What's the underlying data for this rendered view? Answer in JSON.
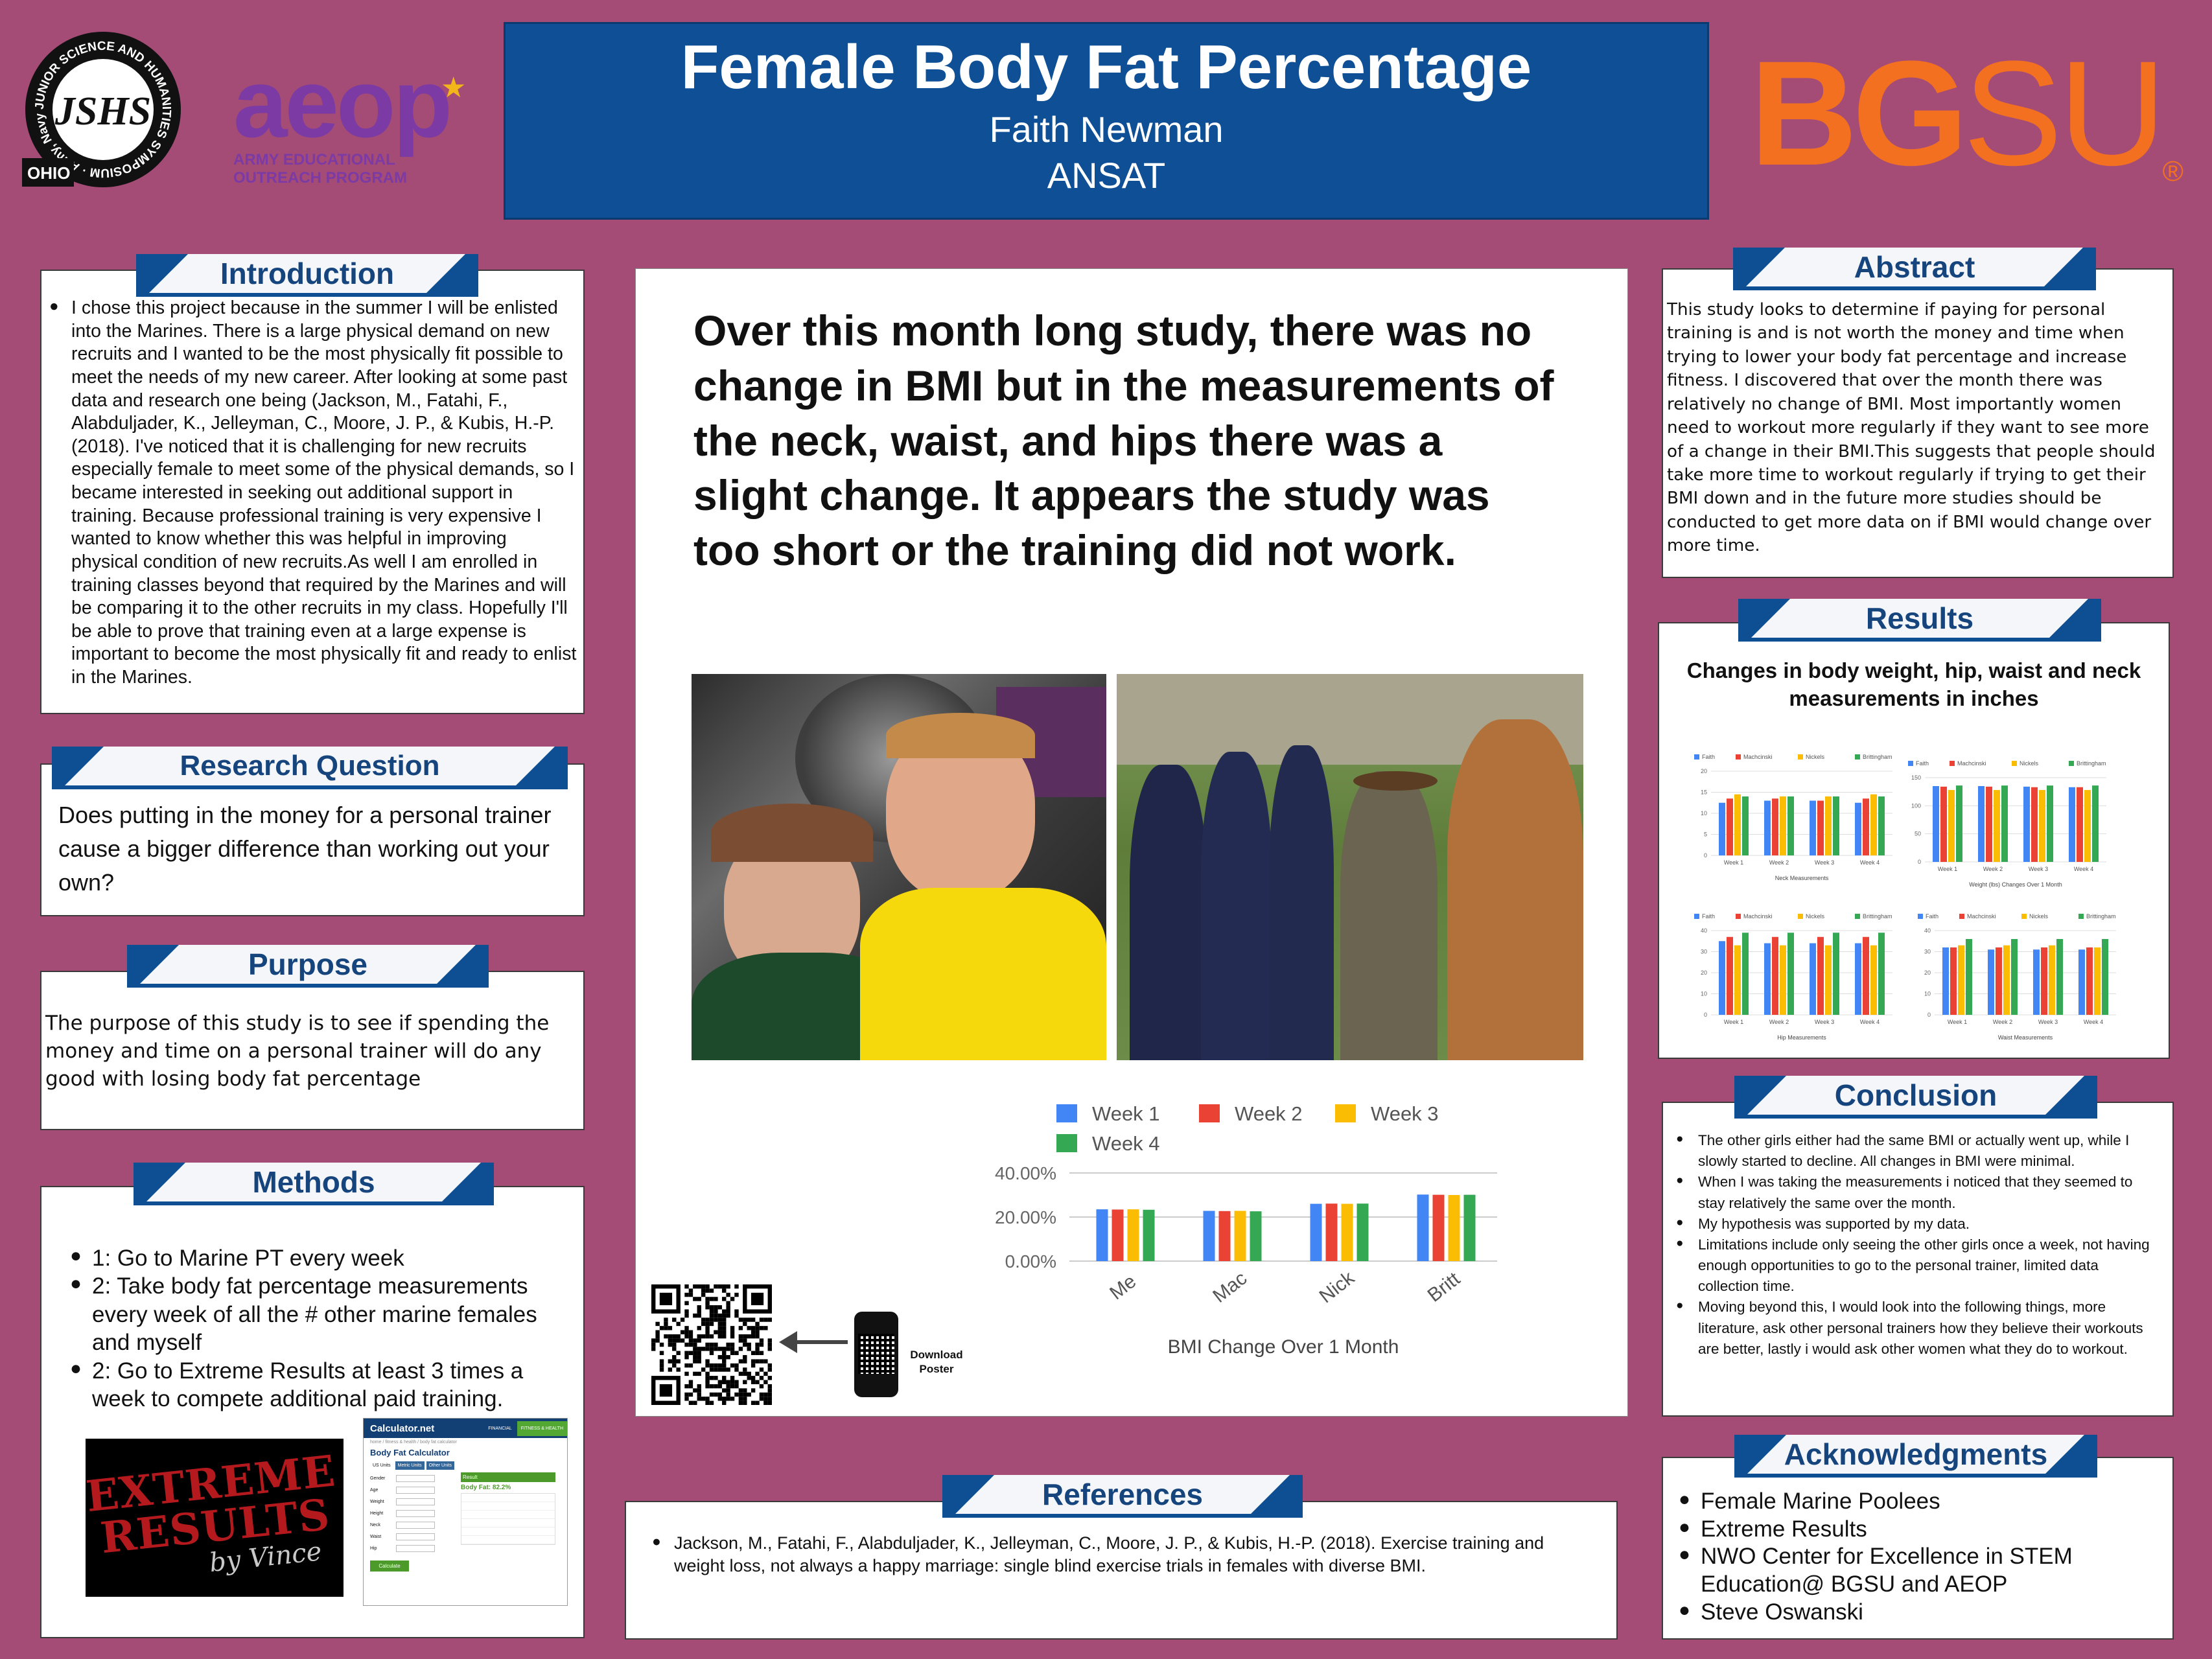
{
  "header": {
    "title": "Female Body Fat Percentage",
    "author": "Faith Newman",
    "affiliation": "ANSAT"
  },
  "logos": {
    "jshs_ring": "JUNIOR SCIENCE AND HUMANITIES SYMPOSIUM · Army, Navy and Air Force Sponsored ·",
    "jshs_center": "JSHS",
    "jshs_state": "OHIO",
    "aeop_mark": "aeop",
    "aeop_line1": "ARMY EDUCATIONAL",
    "aeop_line2": "OUTREACH PROGRAM",
    "bgsu_bg": "BG",
    "bgsu_su": "SU",
    "bgsu_reg": "®"
  },
  "introduction": {
    "heading": "Introduction",
    "text": "I chose this project  because in the summer I will be enlisted into the Marines. There is a large physical demand on new recruits and I wanted to be the most physically fit possible to meet the needs of my new career. After looking at some past data and research one being (Jackson, M., Fatahi, F., Alabduljader, K., Jelleyman, C., Moore, J. P., & Kubis, H.-P. (2018). I've noticed that it is challenging for new recruits especially female to meet some of the physical demands, so I became interested in seeking out additional support in training. Because professional training is very expensive I wanted to know whether this was helpful in improving physical condition of new recruits.As well I am enrolled in training classes beyond that required by the Marines and will be comparing it to the other recruits in my class. Hopefully I'll be able to prove that training even at a large expense is important to become the most physically fit and ready to enlist in the Marines."
  },
  "research_question": {
    "heading": "Research Question",
    "text": "Does putting in the money for a personal trainer cause a bigger difference than working out your own?"
  },
  "purpose": {
    "heading": "Purpose",
    "text": "The purpose of this study is to see if spending the money and time on a personal trainer will do any good with losing body fat percentage"
  },
  "methods": {
    "heading": "Methods",
    "items": [
      "1: Go to Marine PT every week",
      "2: Take body fat percentage measurements every week of all the # other marine females and myself",
      "2: Go to Extreme Results at least 3 times a week to compete additional paid training."
    ],
    "extreme_logo_line1": "EXTREME",
    "extreme_logo_line2": "RESULTS",
    "extreme_logo_line3": "by Vince",
    "calc": {
      "brand": "Calculator.net",
      "nav1": "FINANCIAL",
      "nav2": "FITNESS & HEALTH",
      "breadcrumb": "home / fitness & health / body fat calculator",
      "title": "Body Fat Calculator",
      "tab1": "US Units",
      "tab2": "Metric Units",
      "tab3": "Other Units",
      "fields": [
        "Gender",
        "Age",
        "Weight",
        "Height",
        "Neck",
        "Waist",
        "Hip"
      ],
      "result_label": "Result",
      "result_value": "Body Fat: 82.2%",
      "button": "Calculate"
    }
  },
  "key_finding": "Over this month long study, there was no change in BMI but in the measurements of the neck, waist, and hips there was a slight change. It appears the study was too short or the training did not work.",
  "qr": {
    "label_line1": "Download",
    "label_line2": "Poster"
  },
  "chart_data": [
    {
      "type": "bar",
      "title": "",
      "xlabel": "BMI Change Over 1 Month",
      "ylabel": "",
      "categories": [
        "Me",
        "Mac",
        "Nick",
        "Britt"
      ],
      "series": [
        {
          "name": "Week 1",
          "values": [
            23.5,
            22.8,
            26.0,
            30.2
          ],
          "color": "#4285f4"
        },
        {
          "name": "Week 2",
          "values": [
            23.4,
            22.7,
            26.1,
            30.1
          ],
          "color": "#ea4335"
        },
        {
          "name": "Week 3",
          "values": [
            23.5,
            22.8,
            26.0,
            30.0
          ],
          "color": "#fbbc04"
        },
        {
          "name": "Week 4",
          "values": [
            23.3,
            22.6,
            26.1,
            30.1
          ],
          "color": "#34a853"
        }
      ],
      "ylim": [
        0,
        40
      ],
      "yticks": [
        "0.00%",
        "20.00%",
        "40.00%"
      ],
      "grid": true,
      "legend": "top"
    },
    {
      "type": "bar",
      "title": "Neck Measurements",
      "categories": [
        "Week 1",
        "Week 2",
        "Week 3",
        "Week 4"
      ],
      "series": [
        {
          "name": "Faith",
          "values": [
            12.5,
            13,
            13,
            12.5
          ],
          "color": "#4285f4"
        },
        {
          "name": "Machcinski",
          "values": [
            13.5,
            13.5,
            13,
            13.5
          ],
          "color": "#ea4335"
        },
        {
          "name": "Nickels",
          "values": [
            14.5,
            14,
            14,
            14.5
          ],
          "color": "#fbbc04"
        },
        {
          "name": "Brittingham",
          "values": [
            14,
            14,
            14,
            14
          ],
          "color": "#34a853"
        }
      ],
      "ylim": [
        0,
        20
      ],
      "yticks": [
        "0",
        "5",
        "10",
        "15",
        "20"
      ],
      "legend": "top"
    },
    {
      "type": "bar",
      "title": "Weight (lbs) Changes Over 1 Month",
      "categories": [
        "Week 1",
        "Week 2",
        "Week 3",
        "Week 4"
      ],
      "series": [
        {
          "name": "Faith",
          "values": [
            135,
            135,
            134,
            133
          ],
          "color": "#4285f4"
        },
        {
          "name": "Machcinski",
          "values": [
            134,
            134,
            133,
            133
          ],
          "color": "#ea4335"
        },
        {
          "name": "Nickels",
          "values": [
            128,
            128,
            128,
            128
          ],
          "color": "#fbbc04"
        },
        {
          "name": "Brittingham",
          "values": [
            136,
            136,
            136,
            136
          ],
          "color": "#34a853"
        }
      ],
      "ylim": [
        0,
        150
      ],
      "yticks": [
        "0",
        "50",
        "100",
        "150"
      ],
      "legend": "top"
    },
    {
      "type": "bar",
      "title": "Hip Measurements",
      "categories": [
        "Week 1",
        "Week 2",
        "Week 3",
        "Week 4"
      ],
      "series": [
        {
          "name": "Faith",
          "values": [
            35,
            34,
            34,
            34
          ],
          "color": "#4285f4"
        },
        {
          "name": "Machcinski",
          "values": [
            37,
            37,
            37,
            37
          ],
          "color": "#ea4335"
        },
        {
          "name": "Nickels",
          "values": [
            33,
            33,
            33,
            33
          ],
          "color": "#fbbc04"
        },
        {
          "name": "Brittingham",
          "values": [
            39,
            39,
            39,
            39
          ],
          "color": "#34a853"
        }
      ],
      "ylim": [
        0,
        40
      ],
      "yticks": [
        "0",
        "10",
        "20",
        "30",
        "40"
      ],
      "legend": "top"
    },
    {
      "type": "bar",
      "title": "Waist Measurements",
      "categories": [
        "Week 1",
        "Week 2",
        "Week 3",
        "Week 4"
      ],
      "series": [
        {
          "name": "Faith",
          "values": [
            32,
            31,
            31,
            31
          ],
          "color": "#4285f4"
        },
        {
          "name": "Machcinski",
          "values": [
            32,
            32,
            32,
            32
          ],
          "color": "#ea4335"
        },
        {
          "name": "Nickels",
          "values": [
            33,
            33,
            33,
            32
          ],
          "color": "#fbbc04"
        },
        {
          "name": "Brittingham",
          "values": [
            36,
            36,
            36,
            36
          ],
          "color": "#34a853"
        }
      ],
      "ylim": [
        0,
        40
      ],
      "yticks": [
        "0",
        "10",
        "20",
        "30",
        "40"
      ],
      "legend": "top"
    }
  ],
  "abstract": {
    "heading": "Abstract",
    "text": "This study looks to determine if paying for personal training is and is not  worth the money and time when trying to lower your body fat percentage and increase fitness. I discovered that over the month there was relatively no change of BMI. Most importantly women need to workout more regularly if they want to see more of a change in their BMI.This suggests that people should take more time to workout regularly if trying to get their BMI down and in the future more studies should be conducted to get more data on if BMI would change over more time."
  },
  "results": {
    "heading": "Results",
    "subtitle": "Changes in body weight, hip, waist and neck measurements in inches"
  },
  "conclusion": {
    "heading": "Conclusion",
    "items": [
      "The other girls either had the same BMI or actually went up, while I slowly started to decline.  All changes in BMI were minimal.",
      "When I was taking the measurements i noticed that they seemed to stay relatively the same over the month.",
      "My hypothesis was supported by my data.",
      "Limitations include only seeing the other girls once a week, not having enough opportunities to go to the personal trainer, limited data collection time.",
      "Moving beyond this, I would look into the following things, more literature, ask other personal trainers how they believe their workouts are better, lastly i would ask other women what they do to workout."
    ]
  },
  "references": {
    "heading": "References",
    "items": [
      "Jackson, M., Fatahi, F., Alabduljader, K., Jelleyman, C., Moore, J. P., & Kubis, H.-P. (2018). Exercise training and weight loss, not always a happy marriage: single blind exercise trials in females with diverse BMI."
    ]
  },
  "acknowledgments": {
    "heading": "Acknowledgments",
    "items": [
      "Female Marine Poolees",
      "Extreme Results",
      "NWO Center for Excellence in STEM Education@ BGSU and AEOP",
      "Steve Oswanski"
    ]
  }
}
